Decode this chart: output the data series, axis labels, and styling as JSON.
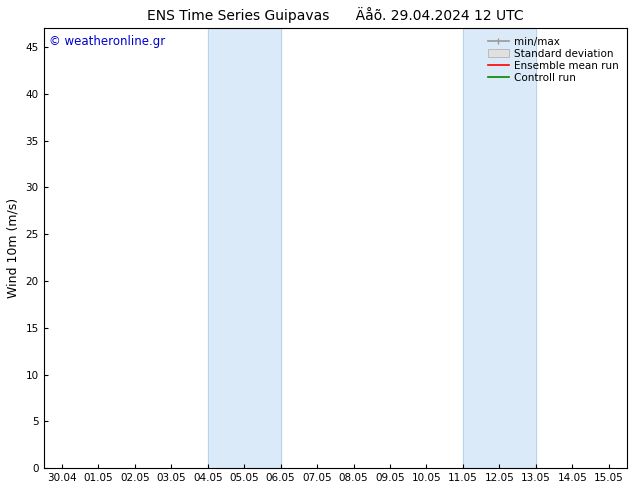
{
  "title": "ENS Time Series Guipavas      Äåõ. 29.04.2024 12 UTC",
  "ylabel": "Wind 10m (m/s)",
  "watermark": "© weatheronline.gr",
  "watermark_color": "#0000cc",
  "ylim": [
    0,
    47
  ],
  "yticks": [
    0,
    5,
    10,
    15,
    20,
    25,
    30,
    35,
    40,
    45
  ],
  "xtick_labels": [
    "30.04",
    "01.05",
    "02.05",
    "03.05",
    "04.05",
    "05.05",
    "06.05",
    "07.05",
    "08.05",
    "09.05",
    "10.05",
    "11.05",
    "12.05",
    "13.05",
    "14.05",
    "15.05"
  ],
  "xtick_positions": [
    0,
    1,
    2,
    3,
    4,
    5,
    6,
    7,
    8,
    9,
    10,
    11,
    12,
    13,
    14,
    15
  ],
  "shaded_bands": [
    {
      "xmin": 4,
      "xmax": 6
    },
    {
      "xmin": 11,
      "xmax": 13
    }
  ],
  "shade_color": "#daeaf8",
  "band_line_color": "#b8d4ea",
  "xlim": [
    -0.5,
    15.5
  ],
  "legend_labels": [
    "min/max",
    "Standard deviation",
    "Ensemble mean run",
    "Controll run"
  ],
  "legend_line_colors": [
    "#999999",
    "#cccccc",
    "#ff0000",
    "#008800"
  ],
  "bg_color": "#ffffff",
  "plot_bg_color": "#ffffff",
  "title_fontsize": 10,
  "tick_fontsize": 7.5,
  "label_fontsize": 9,
  "watermark_fontsize": 8.5,
  "legend_fontsize": 7.5
}
